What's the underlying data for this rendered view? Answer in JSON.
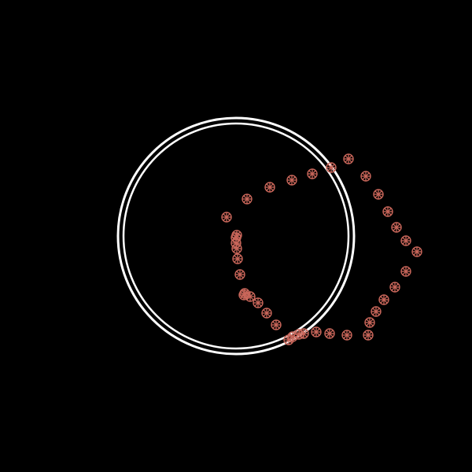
{
  "scene": {
    "background_color": "#000000",
    "ring_color": "#ffffff",
    "dot_color": "#c8665a",
    "ring_count": 2,
    "dot_count": 38,
    "dot_icon": "asterisk-flower-icon"
  }
}
